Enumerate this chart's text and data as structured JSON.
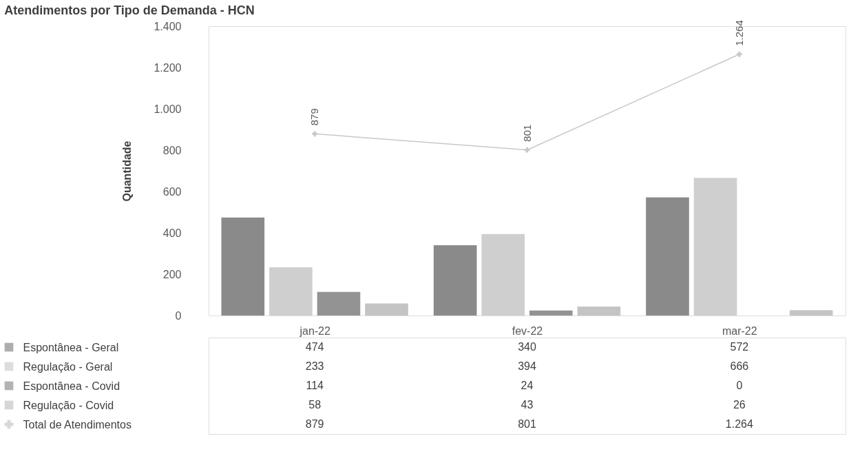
{
  "chart_data": {
    "type": "bar",
    "title": "Atendimentos por Tipo de Demanda - HCN",
    "ylabel": "Quantidade",
    "categories": [
      "jan-22",
      "fev-22",
      "mar-22"
    ],
    "series": [
      {
        "name": "Espontânea - Geral",
        "color": "#8a8a8a",
        "values": [
          474,
          340,
          572
        ],
        "value_labels": [
          "474",
          "340",
          "572"
        ]
      },
      {
        "name": "Regulação - Geral",
        "color": "#cfcfcf",
        "values": [
          233,
          394,
          666
        ],
        "value_labels": [
          "233",
          "394",
          "666"
        ]
      },
      {
        "name": "Espontânea - Covid",
        "color": "#939393",
        "values": [
          114,
          24,
          0
        ],
        "value_labels": [
          "114",
          "24",
          "0"
        ]
      },
      {
        "name": "Regulação - Covid",
        "color": "#c4c4c4",
        "values": [
          58,
          43,
          26
        ],
        "value_labels": [
          "58",
          "43",
          "26"
        ]
      },
      {
        "name": "Total de Atendimentos",
        "type": "line",
        "color": "#c8c8c8",
        "marker": "cross",
        "values": [
          879,
          801,
          1264
        ],
        "value_labels": [
          "879",
          "801",
          "1.264"
        ]
      }
    ],
    "ylim": [
      0,
      1400
    ],
    "yticks": [
      0,
      200,
      400,
      600,
      800,
      {
        "value": 1000,
        "label": "1.000"
      },
      {
        "value": 1200,
        "label": "1.200"
      },
      {
        "value": 1400,
        "label": "1.400"
      }
    ],
    "legend": "bottom",
    "grid": false
  }
}
